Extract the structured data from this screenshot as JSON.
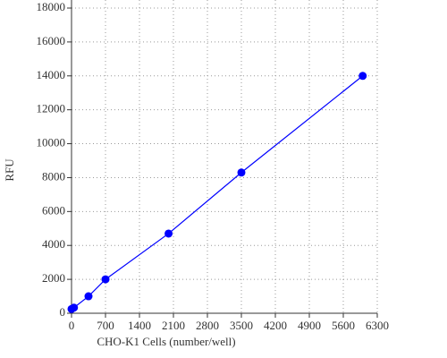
{
  "chart_data": {
    "type": "scatter",
    "x_label": "CHO-K1 Cells (number/well)",
    "y_label": "RFU",
    "series": [
      {
        "x": [
          0,
          50,
          350,
          700,
          2000,
          3500,
          6000
        ],
        "values": [
          250,
          330,
          1000,
          2000,
          4700,
          8300,
          14000
        ],
        "color": "#0000ff",
        "line": true
      }
    ],
    "xlim": [
      0,
      6300
    ],
    "xticks": [
      0,
      700,
      1400,
      2100,
      2800,
      3500,
      4200,
      4900,
      5600,
      6300
    ],
    "ylim": [
      0,
      18000
    ],
    "yticks": [
      0,
      2000,
      4000,
      6000,
      8000,
      10000,
      12000,
      14000,
      16000,
      18000
    ],
    "grid": true
  }
}
